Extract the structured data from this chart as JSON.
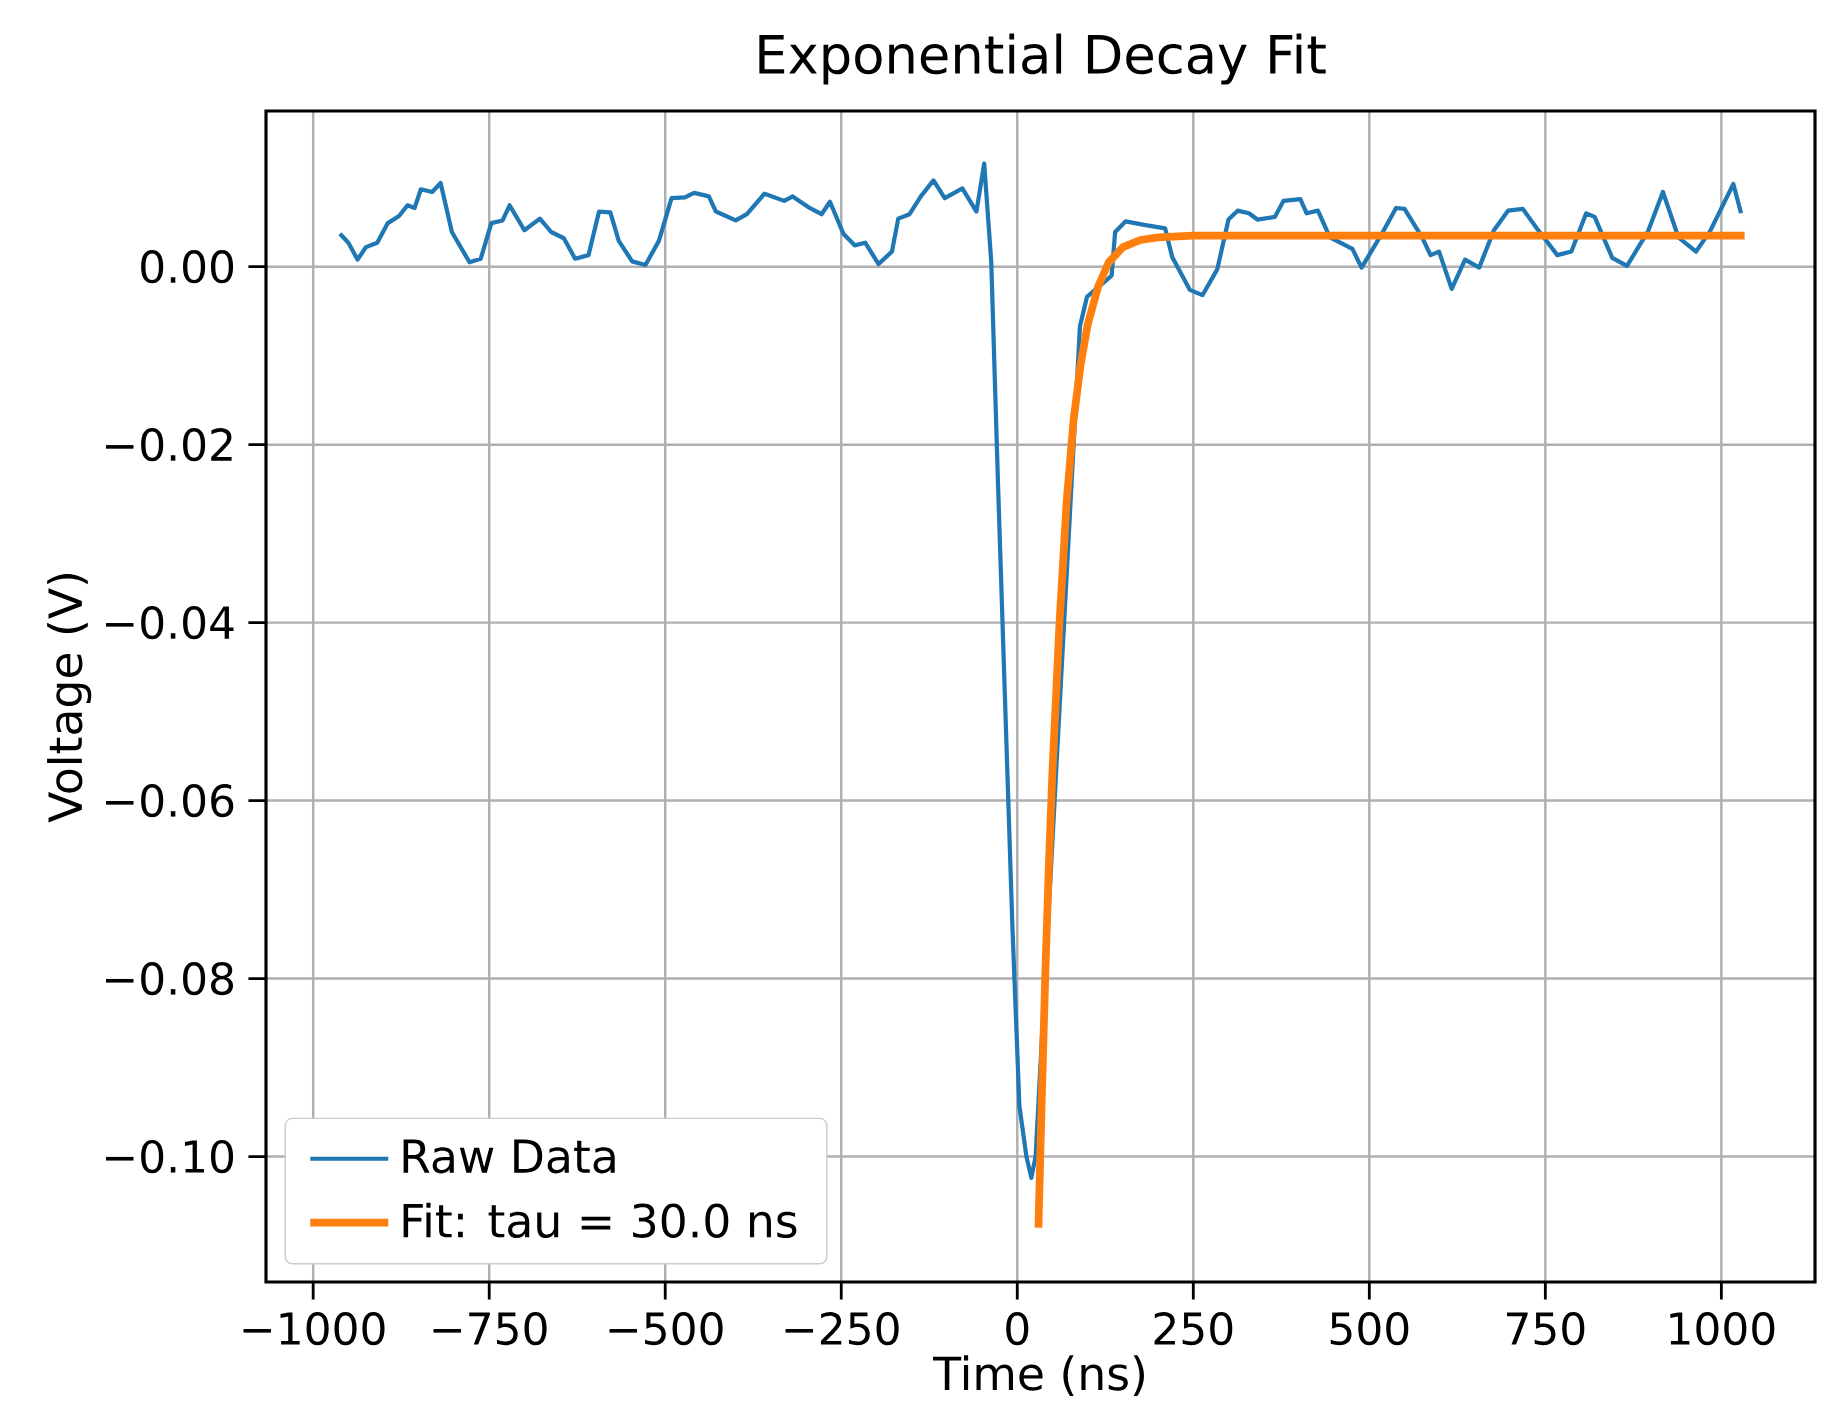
{
  "chart_data": {
    "type": "line",
    "title": "Exponential Decay Fit",
    "xlabel": "Time (ns)",
    "ylabel": "Voltage (V)",
    "xlim": [
      -1067,
      1133
    ],
    "ylim": [
      -0.1141,
      0.0175
    ],
    "xticks": [
      {
        "value": -1000,
        "label": "−1000"
      },
      {
        "value": -750,
        "label": "−750"
      },
      {
        "value": -500,
        "label": "−500"
      },
      {
        "value": -250,
        "label": "−250"
      },
      0,
      250,
      500,
      750,
      1000
    ],
    "yticks": [
      {
        "value": -0.1,
        "label": "−0.10"
      },
      {
        "value": -0.08,
        "label": "−0.08"
      },
      {
        "value": -0.06,
        "label": "−0.06"
      },
      {
        "value": -0.04,
        "label": "−0.04"
      },
      {
        "value": -0.02,
        "label": "−0.02"
      },
      {
        "value": 0,
        "label": "0.00"
      }
    ],
    "grid": true,
    "legend": "bottom left",
    "series": [
      {
        "name": "Raw Data",
        "color": "#1f77b4",
        "x": [
          -962,
          -950,
          -937,
          -925,
          -909,
          -894,
          -878,
          -866,
          -856,
          -847,
          -831,
          -819,
          -803,
          -778,
          -762,
          -747,
          -731,
          -721,
          -700,
          -678,
          -662,
          -644,
          -628,
          -609,
          -594,
          -578,
          -566,
          -547,
          -528,
          -509,
          -491,
          -472,
          -459,
          -438,
          -428,
          -400,
          -384,
          -359,
          -331,
          -319,
          -297,
          -278,
          -266,
          -247,
          -231,
          -216,
          -197,
          -178,
          -169,
          -153,
          -137,
          -119,
          -103,
          -78,
          -58,
          -47,
          -37,
          -27,
          -17,
          -7,
          3,
          13,
          20,
          26,
          50,
          70,
          89,
          99,
          134,
          139,
          154,
          180,
          210,
          220,
          245,
          263,
          284,
          300,
          313,
          329,
          341,
          366,
          378,
          402,
          411,
          427,
          444,
          476,
          489,
          517,
          538,
          550,
          575,
          587,
          599,
          617,
          636,
          656,
          677,
          697,
          718,
          738,
          767,
          787,
          808,
          820,
          845,
          866,
          896,
          917,
          939,
          964,
          984,
          1017,
          1028
        ],
        "values": [
          0.0037,
          0.0027,
          0.0008,
          0.0022,
          0.0027,
          0.0049,
          0.0057,
          0.0069,
          0.0066,
          0.0087,
          0.0084,
          0.0094,
          0.0039,
          0.0005,
          0.0009,
          0.0049,
          0.0052,
          0.0069,
          0.0041,
          0.0054,
          0.0039,
          0.0032,
          0.0009,
          0.0013,
          0.0062,
          0.0061,
          0.0029,
          0.0006,
          0.0002,
          0.0029,
          0.0077,
          0.0078,
          0.0083,
          0.0079,
          0.0062,
          0.0052,
          0.0059,
          0.0082,
          0.0074,
          0.0079,
          0.0067,
          0.0059,
          0.0073,
          0.0037,
          0.0024,
          0.0027,
          0.0003,
          0.0017,
          0.0054,
          0.0059,
          0.0079,
          0.0097,
          0.0077,
          0.0088,
          0.0062,
          0.0116,
          0.0006,
          -0.0253,
          -0.0497,
          -0.074,
          -0.0943,
          -0.1,
          -0.1024,
          -0.1,
          null,
          null,
          -0.0067,
          -0.0034,
          -0.001,
          0.0039,
          0.0051,
          0.0047,
          0.0043,
          0.0011,
          -0.0026,
          -0.0032,
          -0.0003,
          0.0053,
          0.0063,
          0.006,
          0.0053,
          0.0056,
          0.0074,
          0.0076,
          0.006,
          0.0063,
          0.0033,
          0.002,
          -0.0001,
          0.0036,
          0.0066,
          0.0065,
          0.0033,
          0.0013,
          0.0017,
          -0.0025,
          0.0008,
          -0.0001,
          0.0041,
          0.0063,
          0.0065,
          0.0043,
          0.0013,
          0.0017,
          0.006,
          0.0056,
          0.001,
          0.0001,
          0.004,
          0.0084,
          0.0033,
          0.0017,
          0.004,
          0.0093,
          0.006
        ]
      },
      {
        "name": "Fit: tau = 30.0 ns",
        "color": "#ff7f0e",
        "x": [
          30,
          35,
          40,
          45,
          50,
          60,
          70,
          80,
          90,
          100,
          115,
          130,
          150,
          175,
          200,
          250,
          1033
        ],
        "values": [
          -0.108,
          -0.093,
          -0.079,
          -0.067,
          -0.0566,
          -0.04,
          -0.0265,
          -0.0172,
          -0.011,
          -0.0065,
          -0.0022,
          0.0005,
          0.0022,
          0.003,
          0.0033,
          0.0035,
          0.0035
        ]
      }
    ]
  }
}
